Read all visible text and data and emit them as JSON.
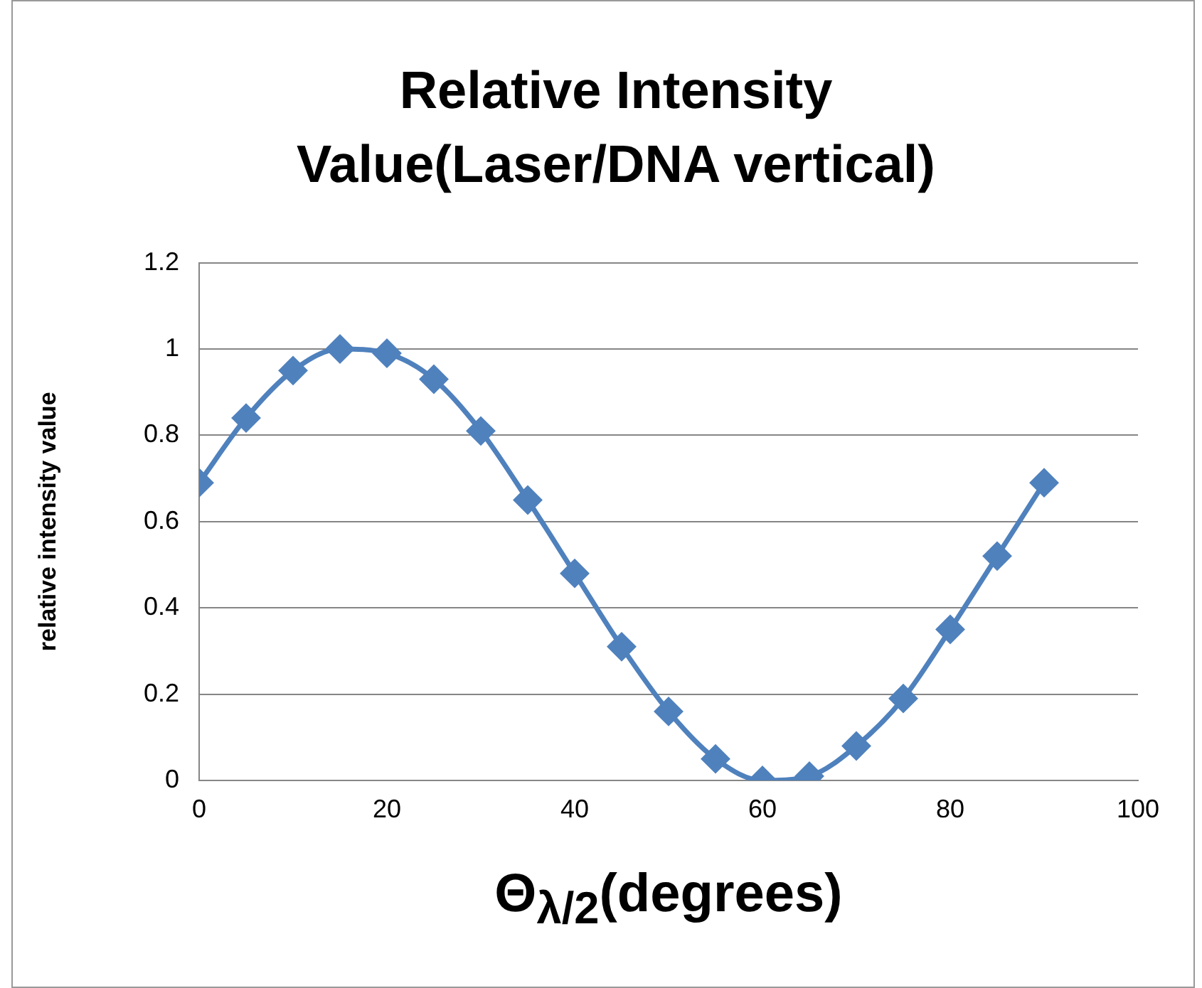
{
  "chart_data": {
    "type": "line",
    "title": "Relative Intensity Value(Laser/DNA vertical)",
    "xlabel": "Θ$_{λ/2}$(degrees)",
    "ylabel": "relative intensity value",
    "x": [
      0,
      5,
      10,
      15,
      20,
      25,
      30,
      35,
      40,
      45,
      50,
      55,
      60,
      65,
      70,
      75,
      80,
      85,
      90
    ],
    "series": [
      {
        "color": "#4f81bd",
        "values": [
          0.69,
          0.84,
          0.95,
          1.0,
          0.99,
          0.93,
          0.81,
          0.65,
          0.48,
          0.31,
          0.16,
          0.05,
          0.0,
          0.01,
          0.08,
          0.19,
          0.35,
          0.52,
          0.69
        ]
      }
    ],
    "xlim": [
      0,
      100
    ],
    "xticks": [
      0,
      20,
      40,
      60,
      80,
      100
    ],
    "ylim": [
      0,
      1.2
    ],
    "yticks": [
      0,
      0.2,
      0.4,
      0.6,
      0.8,
      1,
      1.2
    ],
    "grid": "y",
    "legend": false,
    "marker": "diamond",
    "line_style": "solid"
  }
}
